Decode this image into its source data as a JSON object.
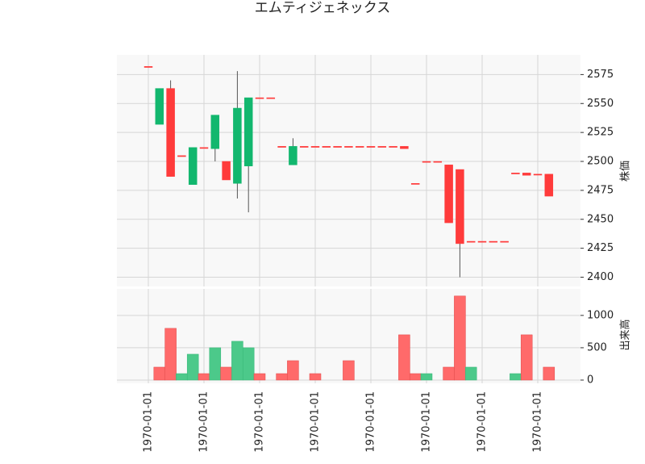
{
  "chart_data": {
    "type": "candlestick",
    "title": "エムティジェネックス",
    "categories": [
      "1970-01-01",
      null,
      null,
      null,
      null,
      "1970-01-01",
      null,
      null,
      null,
      null,
      "1970-01-01",
      null,
      null,
      null,
      null,
      "1970-01-01",
      null,
      null,
      null,
      null,
      "1970-01-01",
      null,
      null,
      null,
      null,
      "1970-01-01",
      null,
      null,
      null,
      null,
      "1970-01-01",
      null,
      null,
      null,
      null,
      "1970-01-01",
      null
    ],
    "open": [
      2582,
      2532,
      2563,
      2505,
      2480,
      2512,
      2511,
      2500,
      2481,
      2496,
      2555,
      2555,
      2513,
      2497,
      2513,
      2513,
      2513,
      2513,
      2513,
      2513,
      2513,
      2513,
      2513,
      2513,
      2481,
      2500,
      2500,
      2497,
      2493,
      2431,
      2431,
      2431,
      2431,
      2490,
      2490,
      2489,
      2489
    ],
    "high": [
      2582,
      2563,
      2570,
      2505,
      2512,
      2512,
      2540,
      2500,
      2578,
      2555,
      2555,
      2555,
      2513,
      2520,
      2513,
      2513,
      2513,
      2513,
      2513,
      2513,
      2513,
      2513,
      2513,
      2513,
      2481,
      2500,
      2500,
      2497,
      2493,
      2431,
      2431,
      2431,
      2431,
      2490,
      2490,
      2489,
      2489
    ],
    "low": [
      2582,
      2532,
      2487,
      2505,
      2480,
      2512,
      2500,
      2484,
      2468,
      2456,
      2555,
      2555,
      2513,
      2497,
      2513,
      2513,
      2513,
      2513,
      2513,
      2513,
      2513,
      2513,
      2513,
      2511,
      2481,
      2500,
      2500,
      2447,
      2400,
      2431,
      2431,
      2431,
      2431,
      2490,
      2488,
      2489,
      2470
    ],
    "close": [
      2582,
      2563,
      2487,
      2505,
      2512,
      2512,
      2540,
      2484,
      2546,
      2555,
      2555,
      2555,
      2513,
      2513,
      2513,
      2513,
      2513,
      2513,
      2513,
      2513,
      2513,
      2513,
      2513,
      2511,
      2481,
      2500,
      2500,
      2447,
      2429,
      2431,
      2431,
      2431,
      2431,
      2490,
      2488,
      2489,
      2470
    ],
    "colors": [
      "#ff3b3b",
      "#12b76e",
      "#ff3b3b",
      "#ff3b3b",
      "#12b76e",
      "#ff3b3b",
      "#12b76e",
      "#ff3b3b",
      "#12b76e",
      "#12b76e",
      "#ff3b3b",
      "#ff3b3b",
      "#ff3b3b",
      "#12b76e",
      "#ff3b3b",
      "#ff3b3b",
      "#ff3b3b",
      "#ff3b3b",
      "#ff3b3b",
      "#ff3b3b",
      "#ff3b3b",
      "#ff3b3b",
      "#ff3b3b",
      "#ff3b3b",
      "#ff3b3b",
      "#ff3b3b",
      "#ff3b3b",
      "#ff3b3b",
      "#ff3b3b",
      "#ff3b3b",
      "#ff3b3b",
      "#ff3b3b",
      "#ff3b3b",
      "#ff3b3b",
      "#ff3b3b",
      "#ff3b3b",
      "#ff3b3b"
    ],
    "ylabel": "株価",
    "ylim": [
      2392,
      2592
    ],
    "yticks": [
      2400,
      2425,
      2450,
      2475,
      2500,
      2525,
      2550,
      2575
    ],
    "volume": {
      "ylabel": "出来高",
      "ylim": [
        0,
        1410
      ],
      "yticks": [
        0,
        500,
        1000
      ],
      "values": [
        0,
        200,
        800,
        100,
        400,
        100,
        500,
        200,
        600,
        500,
        100,
        0,
        100,
        300,
        0,
        100,
        0,
        0,
        300,
        0,
        0,
        0,
        0,
        700,
        100,
        100,
        0,
        200,
        1300,
        200,
        0,
        0,
        0,
        100,
        700,
        0,
        200
      ],
      "colors": [
        "#ff6a6a",
        "#ff6a6a",
        "#ff6a6a",
        "#4cc98a",
        "#4cc98a",
        "#ff6a6a",
        "#4cc98a",
        "#ff6a6a",
        "#4cc98a",
        "#4cc98a",
        "#ff6a6a",
        "#ff6a6a",
        "#ff6a6a",
        "#ff6a6a",
        "#ff6a6a",
        "#ff6a6a",
        "#ff6a6a",
        "#ff6a6a",
        "#ff6a6a",
        "#ff6a6a",
        "#ff6a6a",
        "#ff6a6a",
        "#ff6a6a",
        "#ff6a6a",
        "#ff6a6a",
        "#4cc98a",
        "#ff6a6a",
        "#ff6a6a",
        "#ff6a6a",
        "#4cc98a",
        "#ff6a6a",
        "#ff6a6a",
        "#ff6a6a",
        "#4cc98a",
        "#ff6a6a",
        "#ff6a6a",
        "#ff6a6a"
      ]
    },
    "grid": true
  }
}
